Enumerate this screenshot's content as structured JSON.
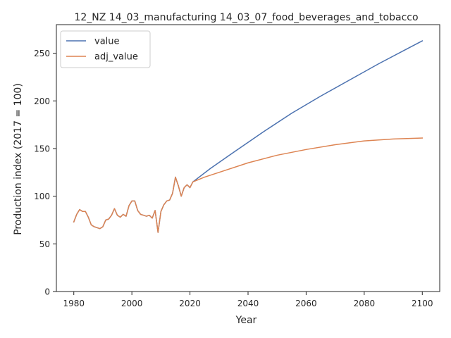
{
  "chart_data": {
    "type": "line",
    "title": "12_NZ 14_03_manufacturing 14_03_07_food_beverages_and_tobacco",
    "xlabel": "Year",
    "ylabel": "Production index (2017 = 100)",
    "xlim": [
      1974,
      2106
    ],
    "ylim": [
      0,
      280
    ],
    "xticks": [
      1980,
      2000,
      2020,
      2040,
      2060,
      2080,
      2100
    ],
    "yticks": [
      0,
      50,
      100,
      150,
      200,
      250
    ],
    "grid": false,
    "legend_position": "top-left",
    "series": [
      {
        "name": "value",
        "color": "#4c72b0",
        "points": [
          [
            1980,
            73
          ],
          [
            1981,
            81
          ],
          [
            1982,
            86
          ],
          [
            1983,
            84
          ],
          [
            1984,
            84
          ],
          [
            1985,
            78
          ],
          [
            1986,
            70
          ],
          [
            1987,
            68
          ],
          [
            1988,
            67
          ],
          [
            1989,
            66
          ],
          [
            1990,
            68
          ],
          [
            1991,
            75
          ],
          [
            1992,
            76
          ],
          [
            1993,
            80
          ],
          [
            1994,
            87
          ],
          [
            1995,
            80
          ],
          [
            1996,
            78
          ],
          [
            1997,
            81
          ],
          [
            1998,
            79
          ],
          [
            1999,
            90
          ],
          [
            2000,
            95
          ],
          [
            2001,
            95
          ],
          [
            2002,
            85
          ],
          [
            2003,
            81
          ],
          [
            2004,
            80
          ],
          [
            2005,
            79
          ],
          [
            2006,
            80
          ],
          [
            2007,
            77
          ],
          [
            2008,
            85
          ],
          [
            2009,
            62
          ],
          [
            2010,
            84
          ],
          [
            2011,
            91
          ],
          [
            2012,
            95
          ],
          [
            2013,
            96
          ],
          [
            2014,
            103
          ],
          [
            2015,
            120
          ],
          [
            2016,
            111
          ],
          [
            2017,
            100
          ],
          [
            2018,
            109
          ],
          [
            2019,
            112
          ],
          [
            2020,
            109
          ],
          [
            2021,
            115
          ],
          [
            2027,
            129
          ],
          [
            2035,
            146
          ],
          [
            2045,
            167
          ],
          [
            2055,
            187
          ],
          [
            2065,
            205
          ],
          [
            2075,
            222
          ],
          [
            2085,
            239
          ],
          [
            2095,
            255
          ],
          [
            2100,
            263
          ]
        ]
      },
      {
        "name": "adj_value",
        "color": "#dd8452",
        "points": [
          [
            1980,
            73
          ],
          [
            1981,
            81
          ],
          [
            1982,
            86
          ],
          [
            1983,
            84
          ],
          [
            1984,
            84
          ],
          [
            1985,
            78
          ],
          [
            1986,
            70
          ],
          [
            1987,
            68
          ],
          [
            1988,
            67
          ],
          [
            1989,
            66
          ],
          [
            1990,
            68
          ],
          [
            1991,
            75
          ],
          [
            1992,
            76
          ],
          [
            1993,
            80
          ],
          [
            1994,
            87
          ],
          [
            1995,
            80
          ],
          [
            1996,
            78
          ],
          [
            1997,
            81
          ],
          [
            1998,
            79
          ],
          [
            1999,
            90
          ],
          [
            2000,
            95
          ],
          [
            2001,
            95
          ],
          [
            2002,
            85
          ],
          [
            2003,
            81
          ],
          [
            2004,
            80
          ],
          [
            2005,
            79
          ],
          [
            2006,
            80
          ],
          [
            2007,
            77
          ],
          [
            2008,
            85
          ],
          [
            2009,
            62
          ],
          [
            2010,
            84
          ],
          [
            2011,
            91
          ],
          [
            2012,
            95
          ],
          [
            2013,
            96
          ],
          [
            2014,
            103
          ],
          [
            2015,
            120
          ],
          [
            2016,
            111
          ],
          [
            2017,
            100
          ],
          [
            2018,
            109
          ],
          [
            2019,
            112
          ],
          [
            2020,
            109
          ],
          [
            2021,
            115
          ],
          [
            2025,
            120
          ],
          [
            2030,
            125
          ],
          [
            2040,
            135
          ],
          [
            2050,
            143
          ],
          [
            2060,
            149
          ],
          [
            2070,
            154
          ],
          [
            2080,
            158
          ],
          [
            2090,
            160
          ],
          [
            2100,
            161
          ]
        ]
      }
    ]
  }
}
